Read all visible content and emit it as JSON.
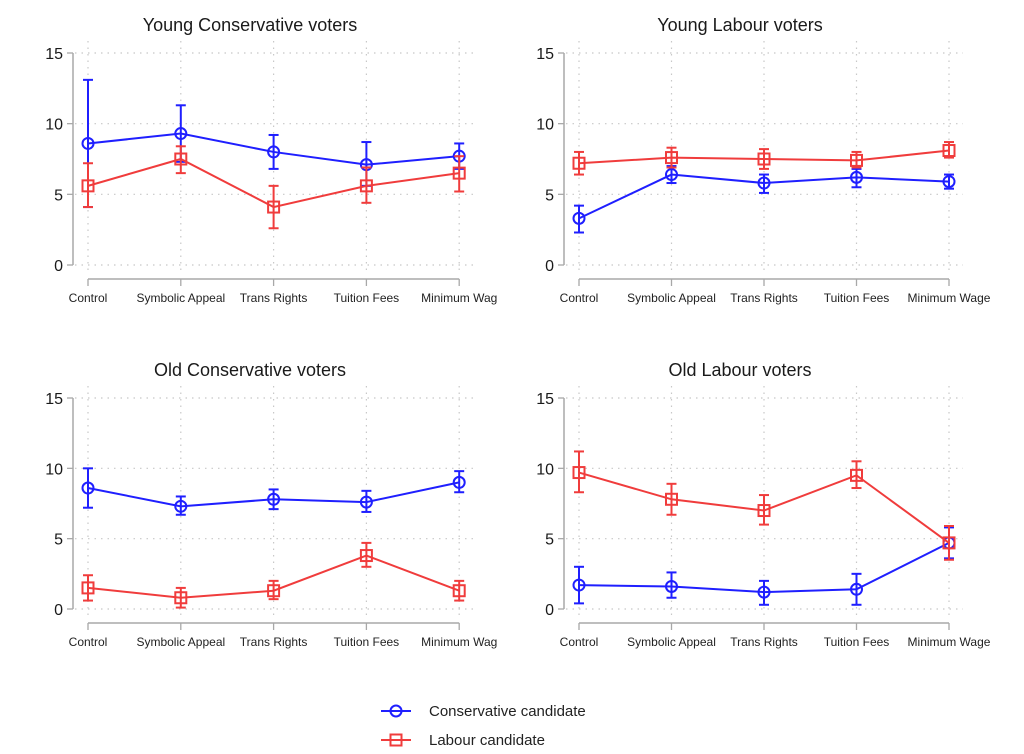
{
  "chart_data": [
    {
      "type": "line",
      "title": "Young Conservative voters",
      "xlabel": "",
      "ylabel": "",
      "categories": [
        "Control",
        "Symbolic Appeal",
        "Trans Rights",
        "Tuition Fees",
        "Minimum Wag"
      ],
      "ylim": [
        0,
        15
      ],
      "yticks": [
        0,
        5,
        10,
        15
      ],
      "grid": true,
      "series": [
        {
          "name": "Conservative candidate",
          "marker": "circle",
          "values": [
            8.6,
            9.3,
            8.0,
            7.1,
            7.7
          ],
          "ci_low": [
            4.1,
            7.3,
            6.8,
            5.6,
            6.8
          ],
          "ci_high": [
            13.1,
            11.3,
            9.2,
            8.7,
            8.6
          ]
        },
        {
          "name": "Labour candidate",
          "marker": "square",
          "values": [
            5.6,
            7.5,
            4.1,
            5.6,
            6.5
          ],
          "ci_low": [
            4.1,
            6.5,
            2.6,
            4.4,
            5.2
          ],
          "ci_high": [
            7.2,
            8.4,
            5.6,
            6.9,
            7.7
          ]
        }
      ]
    },
    {
      "type": "line",
      "title": "Young Labour voters",
      "xlabel": "",
      "ylabel": "",
      "categories": [
        "Control",
        "Symbolic Appeal",
        "Trans Rights",
        "Tuition Fees",
        "Minimum Wage"
      ],
      "ylim": [
        0,
        15
      ],
      "yticks": [
        0,
        5,
        10,
        15
      ],
      "grid": true,
      "series": [
        {
          "name": "Conservative candidate",
          "marker": "circle",
          "values": [
            3.3,
            6.4,
            5.8,
            6.2,
            5.9
          ],
          "ci_low": [
            2.3,
            5.8,
            5.1,
            5.5,
            5.4
          ],
          "ci_high": [
            4.2,
            7.0,
            6.4,
            6.8,
            6.4
          ]
        },
        {
          "name": "Labour candidate",
          "marker": "square",
          "values": [
            7.2,
            7.6,
            7.5,
            7.4,
            8.1
          ],
          "ci_low": [
            6.4,
            6.9,
            6.8,
            6.9,
            7.6
          ],
          "ci_high": [
            8.0,
            8.3,
            8.2,
            8.0,
            8.7
          ]
        }
      ]
    },
    {
      "type": "line",
      "title": "Old Conservative voters",
      "xlabel": "",
      "ylabel": "",
      "categories": [
        "Control",
        "Symbolic Appeal",
        "Trans Rights",
        "Tuition Fees",
        "Minimum Wag"
      ],
      "ylim": [
        0,
        15
      ],
      "yticks": [
        0,
        5,
        10,
        15
      ],
      "grid": true,
      "series": [
        {
          "name": "Conservative candidate",
          "marker": "circle",
          "values": [
            8.6,
            7.3,
            7.8,
            7.6,
            9.0
          ],
          "ci_low": [
            7.2,
            6.7,
            7.1,
            6.9,
            8.3
          ],
          "ci_high": [
            10.0,
            8.0,
            8.5,
            8.4,
            9.8
          ]
        },
        {
          "name": "Labour candidate",
          "marker": "square",
          "values": [
            1.5,
            0.8,
            1.3,
            3.8,
            1.3
          ],
          "ci_low": [
            0.6,
            0.1,
            0.7,
            3.0,
            0.6
          ],
          "ci_high": [
            2.4,
            1.5,
            2.0,
            4.7,
            2.0
          ]
        }
      ]
    },
    {
      "type": "line",
      "title": "Old Labour voters",
      "xlabel": "",
      "ylabel": "",
      "categories": [
        "Control",
        "Symbolic Appeal",
        "Trans Rights",
        "Tuition Fees",
        "Minimum Wage"
      ],
      "ylim": [
        0,
        15
      ],
      "yticks": [
        0,
        5,
        10,
        15
      ],
      "grid": true,
      "series": [
        {
          "name": "Conservative candidate",
          "marker": "circle",
          "values": [
            1.7,
            1.6,
            1.2,
            1.4,
            4.7
          ],
          "ci_low": [
            0.4,
            0.8,
            0.3,
            0.3,
            3.6
          ],
          "ci_high": [
            3.0,
            2.6,
            2.0,
            2.5,
            5.8
          ]
        },
        {
          "name": "Labour candidate",
          "marker": "square",
          "values": [
            9.7,
            7.8,
            7.0,
            9.5,
            4.7
          ],
          "ci_low": [
            8.3,
            6.7,
            6.0,
            8.6,
            3.5
          ],
          "ci_high": [
            11.2,
            8.9,
            8.1,
            10.5,
            5.9
          ]
        }
      ]
    }
  ],
  "legend": {
    "placement": "bottom-center",
    "items": [
      {
        "label": "Conservative candidate",
        "marker": "circle",
        "color": "#1f1fff"
      },
      {
        "label": "Labour candidate",
        "marker": "square",
        "color": "#f03c3c"
      }
    ]
  },
  "colors": {
    "conservative": "#1f1fff",
    "labour": "#f03c3c",
    "axis": "#a8a8a8",
    "grid": "#c8c8c8"
  }
}
